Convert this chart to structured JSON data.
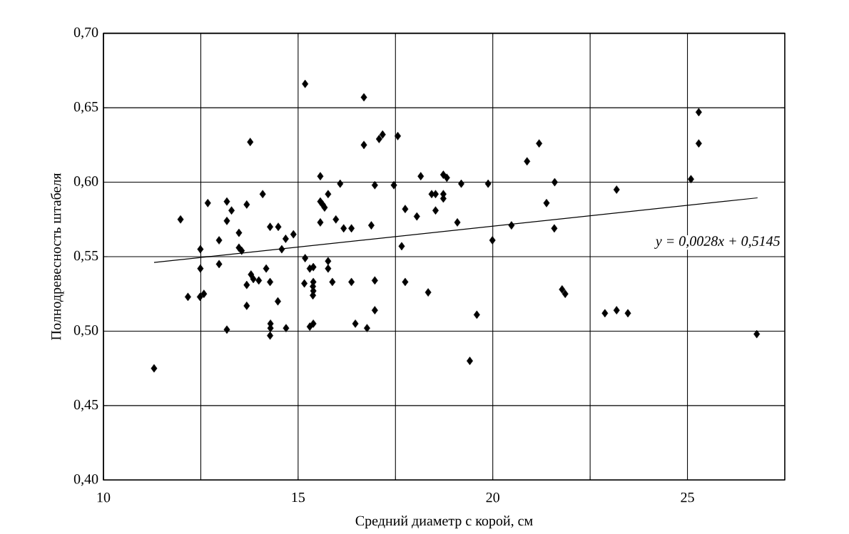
{
  "chart_data": {
    "type": "scatter",
    "xlabel": "Средний диаметр с корой, см",
    "ylabel": "Полнодревесность штабеля",
    "annotations": [
      "y = 0,0028x + 0,5145"
    ],
    "xlim": [
      10,
      27.5
    ],
    "xticks": [
      10,
      {
        "value": 12.5,
        "label": null
      },
      15,
      {
        "value": 17.5,
        "label": null
      },
      20,
      {
        "value": 22.5,
        "label": null
      },
      25
    ],
    "ylim": [
      0.4,
      0.7
    ],
    "yticks": [
      {
        "value": 0.4,
        "label": "0,40"
      },
      {
        "value": 0.45,
        "label": "0,45"
      },
      {
        "value": 0.5,
        "label": "0,50"
      },
      {
        "value": 0.55,
        "label": "0,55"
      },
      {
        "value": 0.6,
        "label": "0,60"
      },
      {
        "value": 0.65,
        "label": "0,65"
      },
      {
        "value": 0.7,
        "label": "0,70"
      }
    ],
    "grid": true,
    "marker": "diamond",
    "series": [
      {
        "color": "#000000",
        "x": [
          11.3,
          11.98,
          12.17,
          12.49,
          12.49,
          12.48,
          12.58,
          12.68,
          12.97,
          12.97,
          13.17,
          13.17,
          13.17,
          13.29,
          13.48,
          13.48,
          13.55,
          13.68,
          13.68,
          13.68,
          13.77,
          13.79,
          13.85,
          13.99,
          14.09,
          14.18,
          14.28,
          14.28,
          14.29,
          14.29,
          14.28,
          14.49,
          14.48,
          14.58,
          14.68,
          14.69,
          14.88,
          15.18,
          15.18,
          15.16,
          15.3,
          15.39,
          15.39,
          15.38,
          15.39,
          15.38,
          15.3,
          15.39,
          15.57,
          15.57,
          15.63,
          15.68,
          15.57,
          15.77,
          15.77,
          15.77,
          15.88,
          15.97,
          16.08,
          16.17,
          16.37,
          16.37,
          16.47,
          16.69,
          16.69,
          16.77,
          16.88,
          16.97,
          16.97,
          16.97,
          17.08,
          17.17,
          17.46,
          17.56,
          17.66,
          17.75,
          17.75,
          18.05,
          18.15,
          18.34,
          18.43,
          18.53,
          18.53,
          18.73,
          18.82,
          18.73,
          18.73,
          19.19,
          19.09,
          19.88,
          19.99,
          19.59,
          19.41,
          20.48,
          20.88,
          21.19,
          21.38,
          21.59,
          21.58,
          21.78,
          21.86,
          22.88,
          23.18,
          23.47,
          23.18,
          25.09,
          25.29,
          25.29,
          26.78
        ],
        "values": [
          0.475,
          0.575,
          0.523,
          0.555,
          0.542,
          0.523,
          0.525,
          0.586,
          0.561,
          0.545,
          0.587,
          0.574,
          0.501,
          0.581,
          0.566,
          0.556,
          0.554,
          0.585,
          0.517,
          0.531,
          0.627,
          0.538,
          0.535,
          0.534,
          0.592,
          0.542,
          0.57,
          0.533,
          0.505,
          0.502,
          0.497,
          0.57,
          0.52,
          0.555,
          0.562,
          0.502,
          0.565,
          0.666,
          0.549,
          0.532,
          0.542,
          0.543,
          0.533,
          0.53,
          0.527,
          0.524,
          0.503,
          0.505,
          0.604,
          0.587,
          0.585,
          0.583,
          0.573,
          0.592,
          0.547,
          0.542,
          0.533,
          0.575,
          0.599,
          0.569,
          0.569,
          0.533,
          0.505,
          0.657,
          0.625,
          0.502,
          0.571,
          0.598,
          0.534,
          0.514,
          0.629,
          0.632,
          0.598,
          0.631,
          0.557,
          0.582,
          0.533,
          0.577,
          0.604,
          0.526,
          0.592,
          0.592,
          0.581,
          0.605,
          0.603,
          0.592,
          0.589,
          0.599,
          0.573,
          0.599,
          0.561,
          0.511,
          0.48,
          0.571,
          0.614,
          0.626,
          0.586,
          0.6,
          0.569,
          0.528,
          0.525,
          0.512,
          0.514,
          0.512,
          0.595,
          0.602,
          0.647,
          0.626,
          0.498
        ]
      },
      {
        "type": "line",
        "color": "#000000",
        "marker": "none",
        "line_style": "solid",
        "x": [
          11.3,
          26.8
        ],
        "values": [
          0.5461,
          0.5895
        ]
      }
    ]
  }
}
